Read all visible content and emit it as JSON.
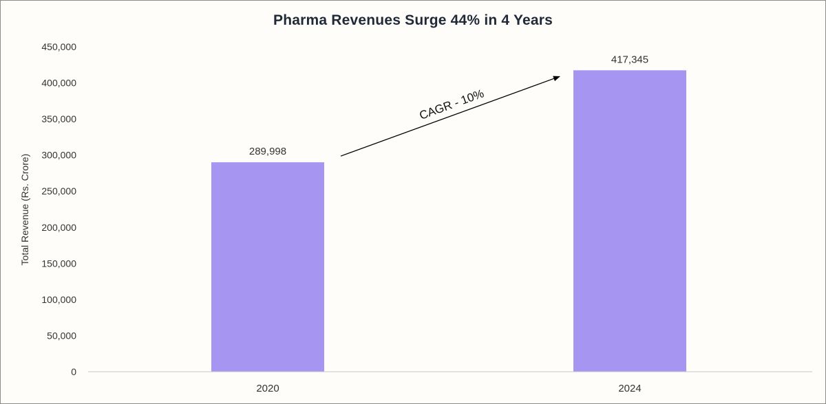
{
  "chart_data": {
    "type": "bar",
    "title": "Pharma Revenues Surge 44% in 4 Years",
    "xlabel": "",
    "ylabel": "Total Revenue (Rs. Crore)",
    "categories": [
      "2020",
      "2024"
    ],
    "values": [
      289998,
      417345
    ],
    "data_labels": [
      "289,998",
      "417,345"
    ],
    "ylim": [
      0,
      450000
    ],
    "yticks": [
      "0",
      "50,000",
      "100,000",
      "150,000",
      "200,000",
      "250,000",
      "300,000",
      "350,000",
      "400,000",
      "450,000"
    ],
    "grid": false,
    "bar_color": "#a795f2",
    "annotation": {
      "text": "CAGR - 10%",
      "from_category": "2020",
      "to_category": "2024"
    }
  }
}
